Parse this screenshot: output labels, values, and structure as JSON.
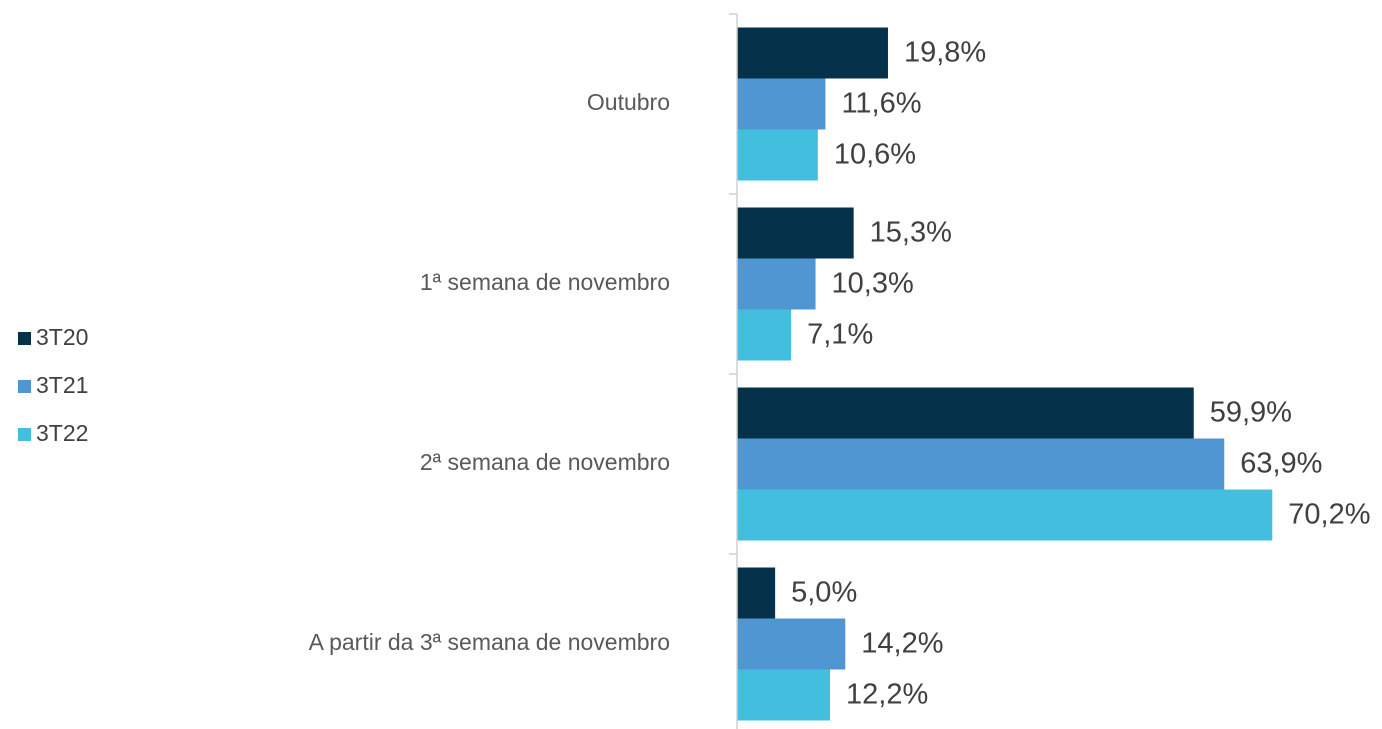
{
  "chart_data": {
    "type": "barh",
    "categories": [
      "Outubro",
      "1ª semana de novembro",
      "2ª semana de novembro",
      "A partir da 3ª semana de novembro"
    ],
    "series": [
      {
        "name": "3T20",
        "color": "#06314a",
        "values": [
          19.8,
          15.3,
          59.9,
          5.0
        ],
        "value_labels": [
          "19,8%",
          "15,3%",
          "59,9%",
          "5,0%"
        ]
      },
      {
        "name": "3T21",
        "color": "#5096d2",
        "values": [
          11.6,
          10.3,
          63.9,
          14.2
        ],
        "value_labels": [
          "11,6%",
          "10,3%",
          "63,9%",
          "14,2%"
        ]
      },
      {
        "name": "3T22",
        "color": "#43bedf",
        "values": [
          10.6,
          7.1,
          70.2,
          12.2
        ],
        "value_labels": [
          "10,6%",
          "7,1%",
          "70,2%",
          "12,2%"
        ]
      }
    ],
    "xlim": [
      0,
      80
    ],
    "legend": "left"
  }
}
